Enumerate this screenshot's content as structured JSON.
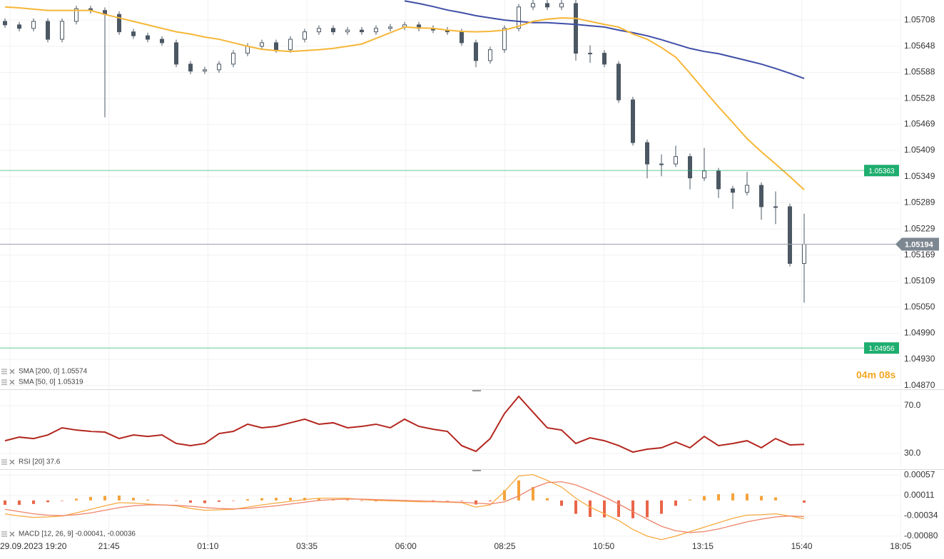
{
  "chart_data": [
    {
      "type": "candlestick",
      "candles": [
        [
          1.05705,
          1.05712,
          1.0569,
          1.05697
        ],
        [
          1.05697,
          1.05704,
          1.05682,
          1.05689
        ],
        [
          1.05689,
          1.05712,
          1.05682,
          1.05705
        ],
        [
          1.05705,
          1.05712,
          1.05657,
          1.05664
        ],
        [
          1.05664,
          1.05712,
          1.05657,
          1.05705
        ],
        [
          1.05705,
          1.05741,
          1.05698,
          1.05734
        ],
        [
          1.05734,
          1.05741,
          1.05723,
          1.0573
        ],
        [
          1.0573,
          1.05737,
          1.05485,
          1.05721
        ],
        [
          1.05721,
          1.05728,
          1.05674,
          1.05681
        ],
        [
          1.05681,
          1.05688,
          1.05665,
          1.05672
        ],
        [
          1.05672,
          1.05679,
          1.05657,
          1.05664
        ],
        [
          1.05664,
          1.05671,
          1.05649,
          1.05656
        ],
        [
          1.05656,
          1.05663,
          1.056,
          1.05607
        ],
        [
          1.05607,
          1.05614,
          1.05584,
          1.05591
        ],
        [
          1.05591,
          1.05601,
          1.05584,
          1.05594
        ],
        [
          1.05594,
          1.05614,
          1.05587,
          1.05607
        ],
        [
          1.05607,
          1.05639,
          1.056,
          1.05632
        ],
        [
          1.05632,
          1.05655,
          1.05625,
          1.05648
        ],
        [
          1.05648,
          1.05663,
          1.05641,
          1.05656
        ],
        [
          1.05656,
          1.05663,
          1.05633,
          1.0564
        ],
        [
          1.0564,
          1.05671,
          1.05633,
          1.05664
        ],
        [
          1.05664,
          1.05688,
          1.05657,
          1.05681
        ],
        [
          1.05681,
          1.05696,
          1.05674,
          1.05689
        ],
        [
          1.05689,
          1.05696,
          1.05674,
          1.05681
        ],
        [
          1.05681,
          1.05692,
          1.05674,
          1.05685
        ],
        [
          1.05685,
          1.05692,
          1.05674,
          1.05681
        ],
        [
          1.05681,
          1.05696,
          1.05674,
          1.05689
        ],
        [
          1.05689,
          1.05699,
          1.05682,
          1.05692
        ],
        [
          1.05692,
          1.05704,
          1.05685,
          1.05697
        ],
        [
          1.05697,
          1.05704,
          1.05682,
          1.05689
        ],
        [
          1.05689,
          1.05696,
          1.05678,
          1.05685
        ],
        [
          1.05685,
          1.05692,
          1.05674,
          1.05681
        ],
        [
          1.05681,
          1.05688,
          1.05649,
          1.05656
        ],
        [
          1.05656,
          1.05663,
          1.056,
          1.05615
        ],
        [
          1.05615,
          1.05647,
          1.05608,
          1.0564
        ],
        [
          1.0564,
          1.05696,
          1.05633,
          1.05689
        ],
        [
          1.05689,
          1.05745,
          1.05682,
          1.05738
        ],
        [
          1.05738,
          1.05754,
          1.05731,
          1.05746
        ],
        [
          1.05746,
          1.05754,
          1.05731,
          1.05738
        ],
        [
          1.05738,
          1.05754,
          1.05731,
          1.05746
        ],
        [
          1.05746,
          1.05754,
          1.05615,
          1.05632
        ],
        [
          1.05632,
          1.0565,
          1.0561,
          1.05632
        ],
        [
          1.05632,
          1.05639,
          1.056,
          1.05607
        ],
        [
          1.05607,
          1.05614,
          1.05518,
          1.05525
        ],
        [
          1.05525,
          1.05532,
          1.0542,
          1.05427
        ],
        [
          1.05427,
          1.05434,
          1.05345,
          1.05378
        ],
        [
          1.05378,
          1.054,
          1.0535,
          1.05378
        ],
        [
          1.05378,
          1.0542,
          1.05371,
          1.05395
        ],
        [
          1.05395,
          1.05402,
          1.0532,
          1.05346
        ],
        [
          1.05346,
          1.05415,
          1.05339,
          1.05362
        ],
        [
          1.05362,
          1.05369,
          1.053,
          1.05321
        ],
        [
          1.05321,
          1.05328,
          1.05275,
          1.05313
        ],
        [
          1.05313,
          1.0536,
          1.05306,
          1.05329
        ],
        [
          1.05329,
          1.05336,
          1.0525,
          1.0528
        ],
        [
          1.0528,
          1.05315,
          1.0524,
          1.0528
        ],
        [
          1.0528,
          1.05287,
          1.05143,
          1.0515
        ],
        [
          1.0515,
          1.05264,
          1.0506,
          1.05194
        ]
      ],
      "series": [
        {
          "name": "SMA [200, 0] 1.05574",
          "color": "#3f4fa8",
          "values": [
            null,
            null,
            null,
            null,
            null,
            null,
            null,
            null,
            null,
            null,
            null,
            null,
            null,
            null,
            null,
            null,
            null,
            null,
            null,
            null,
            null,
            null,
            null,
            null,
            null,
            null,
            null,
            null,
            1.05752,
            1.05746,
            1.05739,
            1.05731,
            1.05725,
            1.05718,
            1.05713,
            1.05708,
            1.05705,
            1.05702,
            1.05702,
            1.057,
            1.05698,
            1.05695,
            1.05692,
            1.05685,
            1.05679,
            1.05672,
            1.05663,
            1.05653,
            1.05643,
            1.05636,
            1.05631,
            1.05623,
            1.05615,
            1.05607,
            1.05597,
            1.05586,
            1.05574
          ]
        },
        {
          "name": "SMA [50, 0] 1.05319",
          "color": "#f6b637",
          "values": [
            1.05738,
            1.05736,
            1.05733,
            1.0573,
            1.0573,
            1.0573,
            1.0573,
            1.05721,
            1.05713,
            1.05705,
            1.05697,
            1.05689,
            1.05681,
            1.05676,
            1.05669,
            1.05664,
            1.05656,
            1.05648,
            1.05641,
            1.05638,
            1.05636,
            1.05638,
            1.0564,
            1.05643,
            1.05648,
            1.05653,
            1.05666,
            1.05679,
            1.05692,
            1.0569,
            1.05689,
            1.05685,
            1.05682,
            1.05681,
            1.05682,
            1.05685,
            1.05694,
            1.05705,
            1.0571,
            1.05713,
            1.05712,
            1.05705,
            1.05698,
            1.05692,
            1.05676,
            1.05664,
            1.05645,
            1.05623,
            1.05586,
            1.05547,
            1.05509,
            1.05473,
            1.05436,
            1.05406,
            1.05378,
            1.05349,
            1.05319
          ]
        }
      ],
      "levels": [
        {
          "value": 1.05363,
          "color": "#1fae6f"
        },
        {
          "value": 1.04956,
          "color": "#1fae6f"
        }
      ],
      "last_price": 1.05194,
      "countdown": "04m 08s",
      "ylim": [
        1.04863,
        1.05754
      ],
      "yticks": [
        1.05708,
        1.05648,
        1.05588,
        1.05528,
        1.05469,
        1.05409,
        1.05349,
        1.05289,
        1.05229,
        1.05169,
        1.05109,
        {
          "value": 1.0505,
          "label": "1.05050"
        },
        {
          "value": 1.0499,
          "label": "1.04990"
        },
        {
          "value": 1.0493,
          "label": "1.04930"
        },
        {
          "value": 1.0487,
          "label": "1.04870"
        }
      ],
      "x_tick_labels": [
        "29.09.2023 19:20",
        "21:45",
        "01:10",
        "03:35",
        "06:00",
        "08:25",
        "10:50",
        "13:15",
        "15:40",
        "18:05"
      ],
      "grid": true
    },
    {
      "type": "line",
      "series": [
        {
          "name": "RSI [20] 37.6",
          "color": "#b3261e",
          "values": [
            40.7,
            43.7,
            42.5,
            45.5,
            51.5,
            49.6,
            48.5,
            47.9,
            42.5,
            45.5,
            44.3,
            45.5,
            38.4,
            36.6,
            38.4,
            46.7,
            48.5,
            54.5,
            51.5,
            52.7,
            55.7,
            58.7,
            54.5,
            55.7,
            51.5,
            52.7,
            54.5,
            51.5,
            58.7,
            52.7,
            50.3,
            48.5,
            36.6,
            31.8,
            42.5,
            63.4,
            77.8,
            64.6,
            51.5,
            49.6,
            38.4,
            43.1,
            40.7,
            36.6,
            31.2,
            33.6,
            34.8,
            39.6,
            34.8,
            44.3,
            36.6,
            38.4,
            40.7,
            34.8,
            42.5,
            37.2,
            37.6
          ]
        }
      ],
      "ylim": [
        18.7,
        82.5
      ],
      "yticks": [
        {
          "value": 70,
          "label": "70.0"
        },
        {
          "value": 30,
          "label": "30.0"
        }
      ],
      "grid": true
    },
    {
      "type": "macd",
      "legend": "MACD [12, 26, 9] -0.00041, -0.00036",
      "series": [
        {
          "color": "#f7a940",
          "values": [
            -0.0003,
            -0.00035,
            -0.00038,
            -0.00037,
            -0.00035,
            -0.00028,
            -0.0002,
            -0.00012,
            -5e-05,
            -6e-05,
            -8e-05,
            -0.0001,
            -0.00012,
            -0.00018,
            -0.00022,
            -0.00021,
            -0.0002,
            -0.00015,
            -0.0001,
            -6e-05,
            -2e-05,
            2e-05,
            5e-05,
            5e-05,
            5e-05,
            2e-05,
            0,
            -1e-05,
            -2e-05,
            -3e-05,
            -3e-05,
            -4e-05,
            -5e-05,
            -0.00015,
            -0.0001,
            0.0002,
            0.00055,
            0.00058,
            0.00045,
            0.0003,
            5e-05,
            -0.00015,
            -0.0003,
            -0.00045,
            -0.00065,
            -0.0008,
            -0.00088,
            -0.0008,
            -0.0007,
            -0.0006,
            -0.0005,
            -0.0004,
            -0.00033,
            -0.00032,
            -0.0003,
            -0.00035,
            -0.00041
          ]
        },
        {
          "color": "#ee8268",
          "values": [
            -0.0002,
            -0.00025,
            -0.0003,
            -0.00033,
            -0.00034,
            -0.00032,
            -0.00028,
            -0.00022,
            -0.00016,
            -0.00012,
            -0.0001,
            -0.0001,
            -0.00011,
            -0.00013,
            -0.00016,
            -0.00018,
            -0.00019,
            -0.00018,
            -0.00015,
            -0.00012,
            -8e-05,
            -4e-05,
            0,
            2e-05,
            3e-05,
            3e-05,
            2e-05,
            1e-05,
            0,
            -1e-05,
            -2e-05,
            -3e-05,
            -4e-05,
            -6e-05,
            -8e-05,
            -3e-05,
            0.0001,
            0.00028,
            0.0004,
            0.00042,
            0.00035,
            0.00022,
            8e-05,
            -8e-05,
            -0.00025,
            -0.00042,
            -0.00058,
            -0.00068,
            -0.00072,
            -0.0007,
            -0.00064,
            -0.00056,
            -0.00048,
            -0.00042,
            -0.00037,
            -0.00035,
            -0.00036
          ]
        }
      ],
      "histogram": {
        "up_color": "#f5a23c",
        "down_color": "#ea6548",
        "values": [
          -0.0001,
          -0.0001,
          -8e-05,
          -4e-05,
          -1e-05,
          4e-05,
          8e-05,
          0.0001,
          0.00011,
          6e-05,
          2e-05,
          0,
          -1e-05,
          -5e-05,
          -6e-05,
          -3e-05,
          -1e-05,
          3e-05,
          5e-05,
          6e-05,
          6e-05,
          6e-05,
          5e-05,
          3e-05,
          2e-05,
          -1e-05,
          -2e-05,
          -2e-05,
          -2e-05,
          -2e-05,
          -1e-05,
          -1e-05,
          -1e-05,
          -9e-05,
          -2e-05,
          0.00023,
          0.00045,
          0.0003,
          5e-05,
          -0.00012,
          -0.0003,
          -0.00037,
          -0.00038,
          -0.00037,
          -0.0004,
          -0.00038,
          -0.0003,
          -0.00012,
          2e-05,
          0.0001,
          0.00014,
          0.00016,
          0.00015,
          0.0001,
          7e-05,
          0,
          -5e-05
        ]
      },
      "ylim": [
        -0.00093,
        0.00067
      ],
      "yticks": [
        0.00057,
        0.00011,
        -0.00034,
        {
          "value": -0.0008,
          "label": "-0.00080"
        }
      ],
      "grid": true
    }
  ]
}
